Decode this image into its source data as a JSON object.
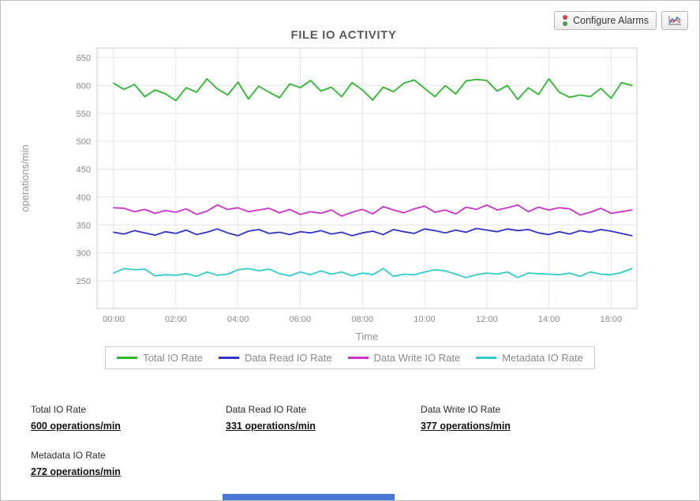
{
  "toolbar": {
    "configure_alarms_label": "Configure Alarms"
  },
  "chart_data": {
    "type": "line",
    "title": "FILE IO ACTIVITY",
    "xlabel": "Time",
    "ylabel": "operations/min",
    "grid": true,
    "legend_position": "bottom",
    "y_ticks": [
      250,
      300,
      350,
      400,
      450,
      500,
      550,
      600,
      650
    ],
    "ylim": [
      200,
      667
    ],
    "x_tick_hours": [
      0,
      2,
      4,
      6,
      8,
      10,
      12,
      14,
      16
    ],
    "x_tick_labels": [
      "00:00",
      "02:00",
      "04:00",
      "06:00",
      "08:00",
      "10:00",
      "12:00",
      "14:00",
      "16:00"
    ],
    "x_range_hours": [
      0,
      16.67
    ],
    "x_step_hours": 0.3333,
    "series": [
      {
        "name": "Total IO Rate",
        "color": "#2eb82e",
        "values": [
          604,
          593,
          602,
          580,
          592,
          585,
          573,
          596,
          588,
          612,
          594,
          583,
          606,
          576,
          599,
          588,
          578,
          603,
          596,
          609,
          590,
          597,
          580,
          605,
          592,
          574,
          597,
          589,
          604,
          610,
          595,
          580,
          600,
          585,
          608,
          611,
          609,
          590,
          600,
          575,
          596,
          584,
          612,
          588,
          579,
          583,
          580,
          595,
          577,
          605,
          600
        ]
      },
      {
        "name": "Data Read IO Rate",
        "color": "#3333cc",
        "values": [
          337,
          334,
          340,
          336,
          332,
          338,
          335,
          341,
          333,
          337,
          343,
          336,
          331,
          339,
          342,
          335,
          337,
          333,
          338,
          336,
          340,
          334,
          337,
          331,
          336,
          339,
          333,
          342,
          338,
          335,
          343,
          340,
          336,
          341,
          337,
          344,
          341,
          338,
          343,
          340,
          342,
          336,
          333,
          338,
          334,
          340,
          337,
          342,
          339,
          335,
          331
        ]
      },
      {
        "name": "Data Write IO Rate",
        "color": "#cc33cc",
        "values": [
          381,
          380,
          374,
          378,
          371,
          376,
          373,
          379,
          369,
          375,
          386,
          378,
          381,
          374,
          377,
          380,
          372,
          378,
          369,
          374,
          371,
          377,
          366,
          373,
          378,
          370,
          383,
          377,
          372,
          379,
          384,
          373,
          377,
          370,
          382,
          378,
          386,
          377,
          381,
          386,
          374,
          382,
          377,
          381,
          379,
          368,
          373,
          380,
          371,
          374,
          377
        ]
      },
      {
        "name": "Metadata IO Rate",
        "color": "#33cccc",
        "values": [
          264,
          272,
          270,
          271,
          259,
          261,
          260,
          263,
          258,
          266,
          260,
          262,
          270,
          272,
          268,
          271,
          263,
          259,
          266,
          261,
          268,
          262,
          266,
          259,
          264,
          261,
          272,
          258,
          262,
          261,
          266,
          270,
          268,
          262,
          256,
          261,
          264,
          262,
          266,
          256,
          264,
          263,
          262,
          261,
          264,
          258,
          266,
          262,
          261,
          265,
          272
        ]
      }
    ]
  },
  "stats": [
    {
      "label": "Total IO Rate",
      "value": "600 operations/min"
    },
    {
      "label": "Data Read IO Rate",
      "value": "331 operations/min"
    },
    {
      "label": "Data Write IO Rate",
      "value": "377 operations/min"
    },
    {
      "label": "Metadata IO Rate",
      "value": "272 operations/min"
    }
  ]
}
